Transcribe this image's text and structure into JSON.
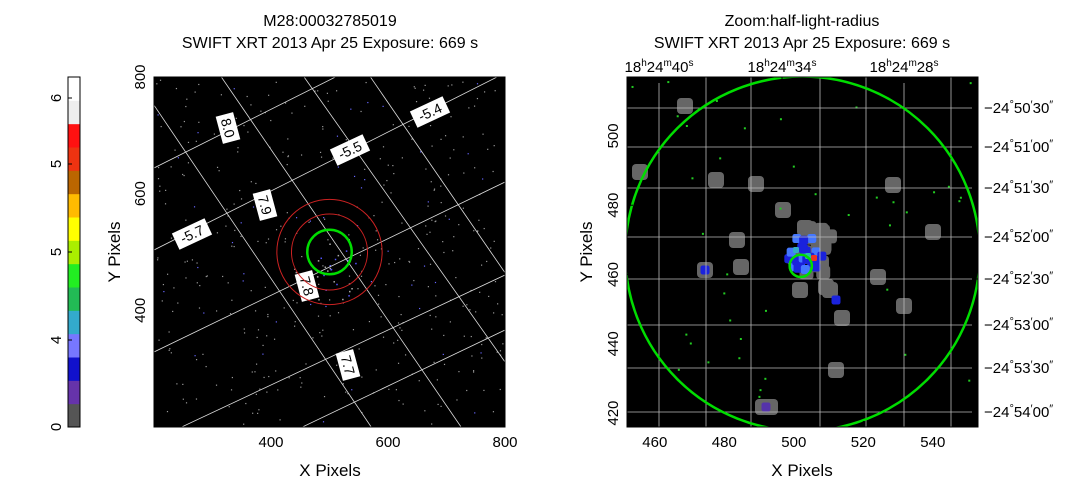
{
  "colorbar": {
    "labels": [
      "0",
      "4",
      "5",
      "5",
      "6"
    ],
    "colors": [
      "#555555",
      "#6633aa",
      "#1111cc",
      "#7777ff",
      "#33aacc",
      "#22bb55",
      "#22ee22",
      "#aaee00",
      "#ffff00",
      "#ffbb00",
      "#bb6600",
      "#ee3311",
      "#ff1111",
      "#eeeeee",
      "#ffffff"
    ]
  },
  "chart_data": [
    {
      "type": "image",
      "title": "M28:00032785019",
      "subtitle": "SWIFT XRT   2013 Apr 25    Exposure: 669 s",
      "xlabel": "X Pixels",
      "ylabel": "Y Pixels",
      "xlim": [
        200,
        800
      ],
      "ylim": [
        200,
        800
      ],
      "xticks": [
        400,
        600,
        800
      ],
      "yticks": [
        400,
        600,
        800
      ],
      "grid_labels": [
        "8.0",
        "-5.5",
        "-5.4",
        "7.9",
        "-5.7",
        "7.8",
        "7.7"
      ],
      "circles": [
        {
          "x": 500,
          "y": 500,
          "r": 38,
          "color": "#00dd00"
        },
        {
          "x": 500,
          "y": 500,
          "r": 65,
          "color": "#cc2222"
        },
        {
          "x": 500,
          "y": 500,
          "r": 90,
          "color": "#cc2222"
        }
      ]
    },
    {
      "type": "image",
      "title": "Zoom:half-light-radius",
      "subtitle": "SWIFT XRT   2013 Apr 25    Exposure: 669 s",
      "xlabel": "X Pixels",
      "ylabel": "Y Pixels",
      "xlim": [
        452,
        553
      ],
      "ylim": [
        416,
        517
      ],
      "xticks": [
        460,
        480,
        500,
        520,
        540
      ],
      "yticks": [
        420,
        440,
        460,
        480,
        500
      ],
      "ra_ticks": [
        {
          "h": "18",
          "m": "24",
          "s": "40"
        },
        {
          "h": "18",
          "m": "24",
          "s": "34"
        },
        {
          "h": "18",
          "m": "24",
          "s": "28"
        }
      ],
      "dec_ticks": [
        {
          "d": "−24",
          "m": "50",
          "s": "30"
        },
        {
          "d": "−24",
          "m": "51",
          "s": "00"
        },
        {
          "d": "−24",
          "m": "51",
          "s": "30"
        },
        {
          "d": "−24",
          "m": "52",
          "s": "00"
        },
        {
          "d": "−24",
          "m": "52",
          "s": "30"
        },
        {
          "d": "−24",
          "m": "53",
          "s": "00"
        },
        {
          "d": "−24",
          "m": "53",
          "s": "30"
        },
        {
          "d": "−24",
          "m": "54",
          "s": "00"
        }
      ],
      "circles": [
        {
          "x": 502.5,
          "y": 466,
          "r": 51,
          "color": "#00dd00"
        },
        {
          "x": 502,
          "y": 462.5,
          "r": 3.2,
          "color": "#00dd00"
        }
      ]
    }
  ]
}
